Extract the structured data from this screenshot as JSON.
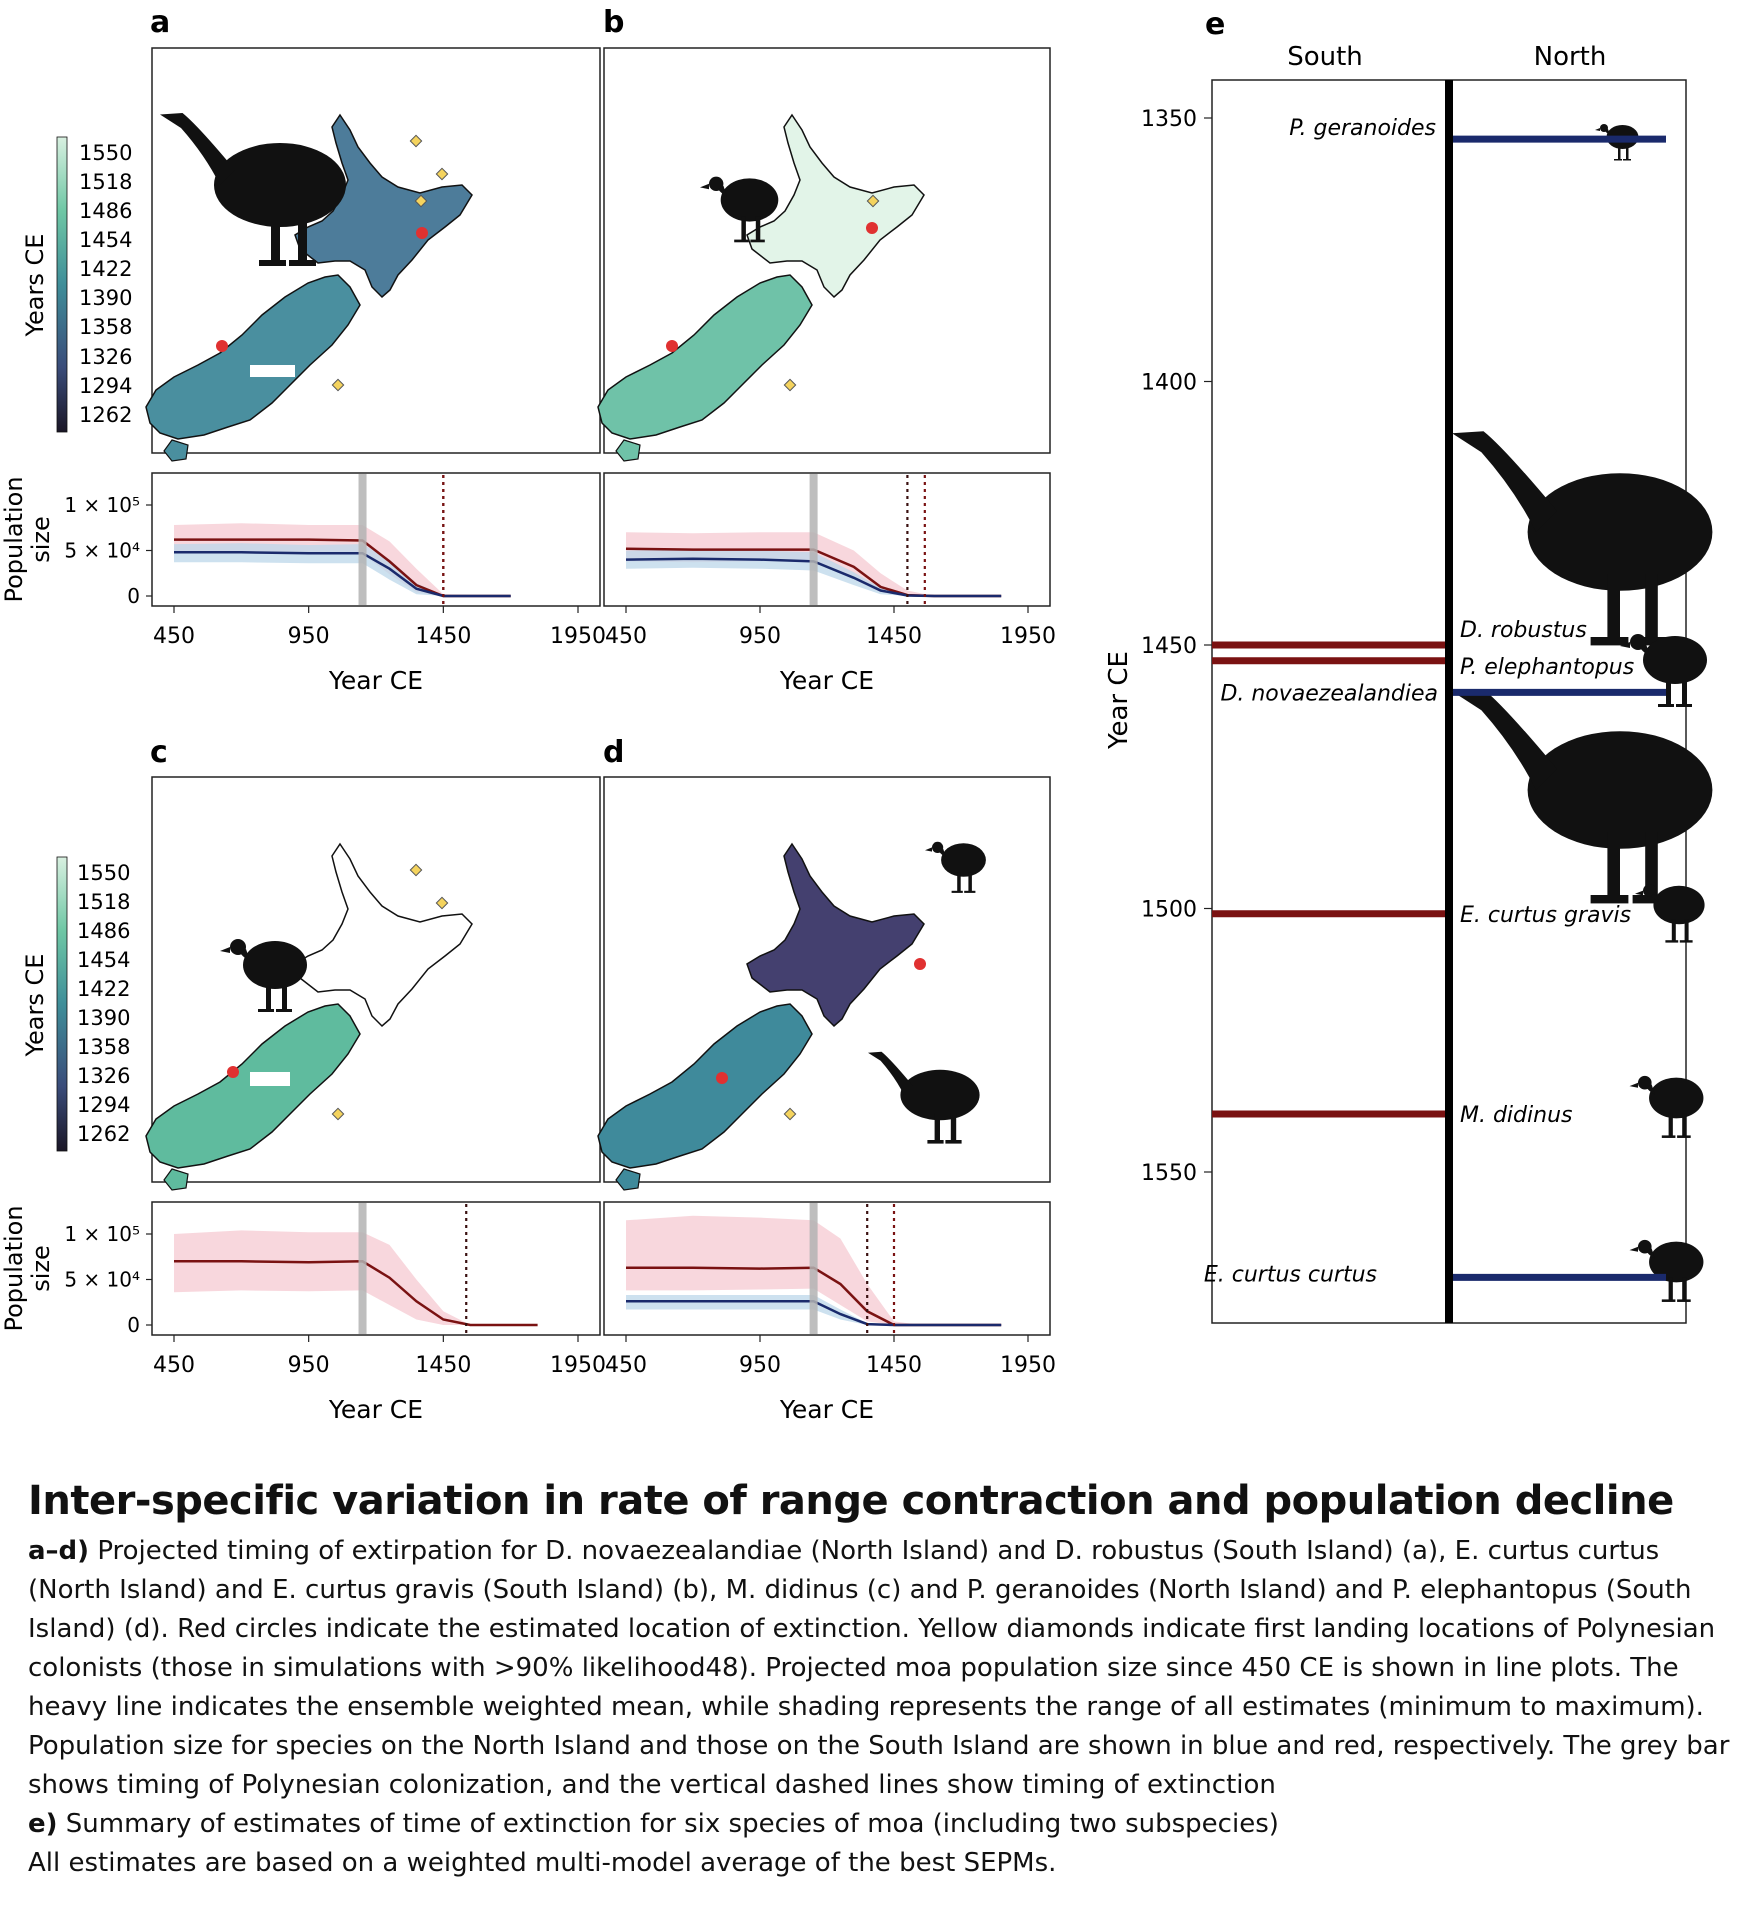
{
  "panel_letters": [
    "a",
    "b",
    "c",
    "d",
    "e"
  ],
  "colorbar": {
    "title": "Years CE",
    "ticks": [
      "1550",
      "1518",
      "1486",
      "1454",
      "1422",
      "1390",
      "1358",
      "1326",
      "1294",
      "1262"
    ],
    "colors_top_to_bottom": [
      "#d8f0e0",
      "#6fc7a5",
      "#3f8e99",
      "#3a4c7a",
      "#1a1626"
    ]
  },
  "series_colors": {
    "north": "#1a2a6c",
    "south": "#7a1212",
    "north_band": "#bcd7ea",
    "south_band": "#f5c9d1",
    "colonization_bar": "#b3b3b3"
  },
  "map_colors": {
    "ochre_marker": "#f4d35e",
    "extinction_marker": "#e03131",
    "silhouette": "#111111"
  },
  "chart_data": [
    {
      "panel": "a",
      "type": "line",
      "xlabel": "Year CE",
      "ylabel": "Population size",
      "xticks": [
        450,
        950,
        1450,
        1950
      ],
      "xlim": [
        400,
        1960
      ],
      "yticks": [
        "0",
        "5 × 10⁴",
        "1 × 10⁵"
      ],
      "ylim": [
        0,
        130000
      ],
      "colonization_year": 1150,
      "extinction_lines": [
        1450,
        1450
      ],
      "series": [
        {
          "island": "south",
          "x": [
            450,
            700,
            950,
            1150,
            1250,
            1350,
            1450,
            1700
          ],
          "values": [
            62000,
            62000,
            62000,
            61000,
            38000,
            12000,
            0,
            0
          ],
          "min": [
            47000,
            47000,
            47000,
            46000,
            24000,
            4000,
            0,
            0
          ],
          "max": [
            78000,
            80000,
            78000,
            78000,
            60000,
            30000,
            2000,
            0
          ]
        },
        {
          "island": "north",
          "x": [
            450,
            700,
            950,
            1150,
            1250,
            1350,
            1450,
            1700
          ],
          "values": [
            48000,
            48000,
            47000,
            47000,
            30000,
            8000,
            0,
            0
          ],
          "min": [
            37000,
            37000,
            36000,
            36000,
            18000,
            2000,
            0,
            0
          ],
          "max": [
            57000,
            58000,
            56000,
            57000,
            40000,
            14000,
            1000,
            0
          ]
        }
      ]
    },
    {
      "panel": "b",
      "type": "line",
      "xlabel": "Year CE",
      "ylabel": "Population size",
      "xticks": [
        450,
        950,
        1450,
        1950
      ],
      "xlim": [
        400,
        1960
      ],
      "yticks": [
        "0",
        "5 × 10⁴",
        "1 × 10⁵"
      ],
      "ylim": [
        0,
        130000
      ],
      "colonization_year": 1150,
      "extinction_lines": [
        1500,
        1565
      ],
      "series": [
        {
          "island": "south",
          "x": [
            450,
            700,
            950,
            1150,
            1300,
            1400,
            1500,
            1600,
            1850
          ],
          "values": [
            52000,
            51000,
            51000,
            51000,
            32000,
            10000,
            1000,
            0,
            0
          ],
          "min": [
            38000,
            37000,
            38000,
            38000,
            18000,
            4000,
            0,
            0,
            0
          ],
          "max": [
            70000,
            69000,
            70000,
            70000,
            50000,
            25000,
            6000,
            0,
            0
          ]
        },
        {
          "island": "north",
          "x": [
            450,
            700,
            950,
            1150,
            1300,
            1400,
            1500,
            1600,
            1850
          ],
          "values": [
            40000,
            41000,
            40000,
            38000,
            20000,
            6000,
            500,
            0,
            0
          ],
          "min": [
            30000,
            31000,
            30000,
            28000,
            12000,
            2000,
            0,
            0,
            0
          ],
          "max": [
            50000,
            51000,
            50000,
            48000,
            26000,
            9000,
            1000,
            0,
            0
          ]
        }
      ]
    },
    {
      "panel": "c",
      "type": "line",
      "xlabel": "Year CE",
      "ylabel": "Population size",
      "xticks": [
        450,
        950,
        1450,
        1950
      ],
      "xlim": [
        400,
        1960
      ],
      "yticks": [
        "0",
        "5 × 10⁴",
        "1 × 10⁵"
      ],
      "ylim": [
        0,
        130000
      ],
      "colonization_year": 1150,
      "extinction_lines": [
        1535
      ],
      "series": [
        {
          "island": "south",
          "x": [
            450,
            700,
            950,
            1150,
            1250,
            1350,
            1450,
            1550,
            1800
          ],
          "values": [
            70000,
            70000,
            69000,
            70000,
            52000,
            26000,
            6000,
            0,
            0
          ],
          "min": [
            36000,
            38000,
            37000,
            38000,
            22000,
            6000,
            0,
            0,
            0
          ],
          "max": [
            100000,
            104000,
            102000,
            102000,
            88000,
            50000,
            15000,
            0,
            0
          ]
        }
      ]
    },
    {
      "panel": "d",
      "type": "line",
      "xlabel": "Year CE",
      "ylabel": "Population size",
      "xticks": [
        450,
        950,
        1450,
        1950
      ],
      "xlim": [
        400,
        1960
      ],
      "yticks": [
        "0",
        "5 × 10⁴",
        "1 × 10⁵"
      ],
      "ylim": [
        0,
        130000
      ],
      "colonization_year": 1150,
      "extinction_lines": [
        1350,
        1450
      ],
      "series": [
        {
          "island": "south",
          "x": [
            450,
            700,
            950,
            1150,
            1250,
            1350,
            1450,
            1550,
            1850
          ],
          "values": [
            63000,
            63000,
            62000,
            63000,
            45000,
            15000,
            0,
            0,
            0
          ],
          "min": [
            38000,
            38000,
            39000,
            40000,
            22000,
            4000,
            0,
            0,
            0
          ],
          "max": [
            115000,
            120000,
            118000,
            115000,
            95000,
            45000,
            4000,
            0,
            0
          ]
        },
        {
          "island": "north",
          "x": [
            450,
            700,
            950,
            1150,
            1250,
            1350,
            1450,
            1850
          ],
          "values": [
            26000,
            26000,
            26000,
            26000,
            12000,
            1000,
            0,
            0
          ],
          "min": [
            17000,
            17000,
            17000,
            17000,
            6000,
            0,
            0,
            0
          ],
          "max": [
            33000,
            33000,
            33000,
            33000,
            17000,
            2000,
            0,
            0
          ]
        }
      ]
    },
    {
      "panel": "e",
      "type": "timeline",
      "ylabel": "Year CE",
      "columns": [
        "South",
        "North"
      ],
      "ylim": [
        1343,
        1580
      ],
      "yticks": [
        1350,
        1400,
        1450,
        1500,
        1550
      ],
      "entries": [
        {
          "species": "P. geranoides",
          "island": "North",
          "year": 1354
        },
        {
          "species": "D. robustus",
          "island": "South",
          "year": 1450
        },
        {
          "species": "P. elephantopus",
          "island": "South",
          "year": 1453
        },
        {
          "species": "D. novaezealandiea",
          "island": "North",
          "year": 1459
        },
        {
          "species": "E. curtus gravis",
          "island": "South",
          "year": 1501
        },
        {
          "species": "M. didinus",
          "island": "South",
          "year": 1539
        },
        {
          "species": "E. curtus curtus",
          "island": "North",
          "year": 1570
        }
      ]
    }
  ],
  "caption": {
    "title": "Inter-specific variation in rate of range contraction and population decline",
    "ad_label": "a–d)",
    "ad_text": "Projected timing of extirpation for D. novaezealandiae (North Island) and D. robustus (South Island) (a), E. curtus curtus (North Island) and E. curtus gravis (South Island) (b), M. didinus (c) and P. geranoides (North Island) and P. elephantopus (South Island) (d). Red circles indicate the estimated location of extinction. Yellow diamonds indicate first landing locations of Polynesian colonists (those in simulations with >90% likelihood48). Projected moa population size since 450 CE is shown in line plots. The heavy line indicates the ensemble weighted mean, while shading represents the range of all estimates (minimum to maximum). Population size for species on the North Island and those on the South Island are shown in blue and red, respectively. The grey bar shows timing of Polynesian colonization, and the vertical dashed lines show timing of extinction",
    "e_label": "e)",
    "e_text": "Summary of estimates of time of extinction for six species of moa (including two subspecies)",
    "footer": "All estimates are based on a weighted multi-model average of the best SEPMs."
  }
}
